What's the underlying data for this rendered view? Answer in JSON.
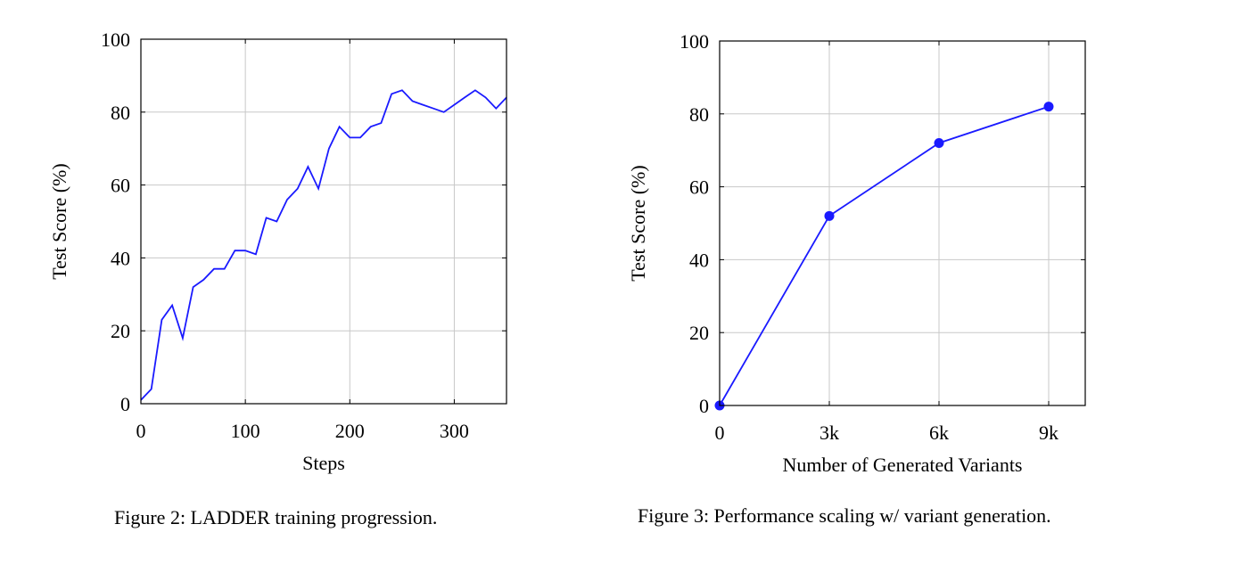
{
  "figures": [
    {
      "caption": "Figure 2: LADDER training progression.",
      "chart_data": {
        "type": "line",
        "title": "",
        "xlabel": "Steps",
        "ylabel": "Test Score (%)",
        "xlim": [
          0,
          350
        ],
        "ylim": [
          0,
          100
        ],
        "xticks": [
          0,
          100,
          200,
          300
        ],
        "xtick_labels": [
          "0",
          "100",
          "200",
          "300"
        ],
        "yticks": [
          0,
          20,
          40,
          60,
          80,
          100
        ],
        "ytick_labels": [
          "0",
          "20",
          "40",
          "60",
          "80",
          "100"
        ],
        "grid": true,
        "markers": false,
        "line_color": "#1a1aff",
        "series": [
          {
            "x": [
              0,
              10,
              20,
              30,
              40,
              50,
              60,
              70,
              80,
              90,
              100,
              110,
              120,
              130,
              140,
              150,
              160,
              170,
              180,
              190,
              200,
              210,
              220,
              230,
              240,
              250,
              260,
              270,
              280,
              290,
              300,
              310,
              320,
              330,
              340,
              350
            ],
            "values": [
              1,
              4,
              23,
              27,
              18,
              32,
              34,
              37,
              37,
              42,
              42,
              41,
              51,
              50,
              56,
              59,
              65,
              59,
              70,
              76,
              73,
              73,
              76,
              77,
              85,
              86,
              83,
              82,
              81,
              80,
              82,
              84,
              86,
              84,
              81,
              84
            ]
          }
        ]
      }
    },
    {
      "caption": "Figure 3: Performance scaling w/ variant generation.",
      "chart_data": {
        "type": "line",
        "title": "",
        "xlabel": "Number of Generated Variants",
        "ylabel": "Test Score (%)",
        "xlim": [
          0,
          10000
        ],
        "ylim": [
          0,
          100
        ],
        "xticks": [
          0,
          3000,
          6000,
          9000
        ],
        "xtick_labels": [
          "0",
          "3k",
          "6k",
          "9k"
        ],
        "yticks": [
          0,
          20,
          40,
          60,
          80,
          100
        ],
        "ytick_labels": [
          "0",
          "20",
          "40",
          "60",
          "80",
          "100"
        ],
        "grid": true,
        "markers": true,
        "line_color": "#1a1aff",
        "series": [
          {
            "x": [
              0,
              3000,
              6000,
              9000
            ],
            "values": [
              0,
              52,
              72,
              82
            ]
          }
        ]
      }
    }
  ]
}
